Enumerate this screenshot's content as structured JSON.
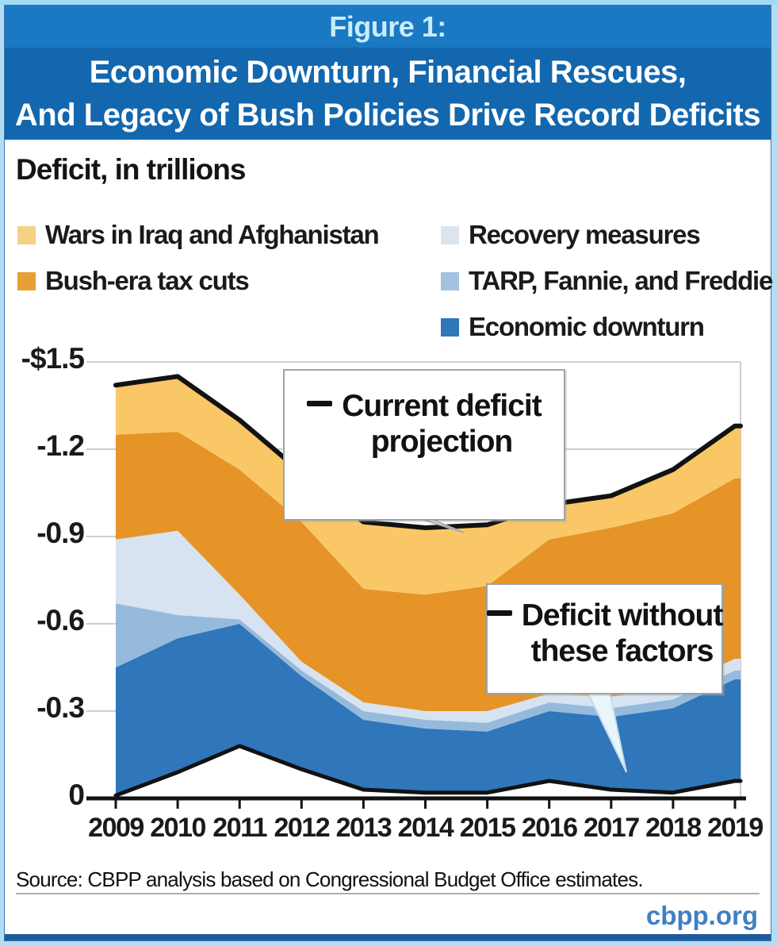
{
  "header": {
    "figure_label": "Figure 1:",
    "title_line1": "Economic Downturn, Financial Rescues,",
    "title_line2": "And Legacy of Bush Policies Drive Record Deficits"
  },
  "chart_heading": "Deficit, in trillions",
  "legend": {
    "left": [
      {
        "label": "Wars in Iraq and Afghanistan",
        "color": "#f4d183"
      },
      {
        "label": "Bush-era tax cuts",
        "color": "#e89f33"
      }
    ],
    "right": [
      {
        "label": "Recovery measures",
        "color": "#dce5ef"
      },
      {
        "label": "TARP, Fannie, and Freddie",
        "color": "#a3c2df"
      },
      {
        "label": "Economic downturn",
        "color": "#2f76bb"
      }
    ]
  },
  "callouts": {
    "current": {
      "line1": "Current deficit",
      "line2": "projection"
    },
    "without": {
      "line1": "Deficit without",
      "line2": "these factors"
    }
  },
  "footer": {
    "source": "Source: CBPP analysis based on Congressional Budget Office estimates.",
    "site": "cbpp.org"
  },
  "colors": {
    "header_band1": "#1b79c3",
    "header_band2": "#1367ae",
    "figure_label_text": "#c9ecfa",
    "frame": "#b5ddf1",
    "navy_bar": "#1e5b9b",
    "gridline": "#c8ced4",
    "axis_line": "#121212",
    "deficit_lines": "#121212",
    "area_wars": "#f9c766",
    "area_tax_cuts": "#e69327",
    "area_recovery": "#d7e3f0",
    "area_tarp": "#96badc",
    "area_downturn": "#2f76bb",
    "site_link": "#3f80c1"
  },
  "chart_data": {
    "type": "area",
    "stacked": true,
    "title": "Deficit, in trillions",
    "unit": "trillions of dollars (deficits plotted as negative values)",
    "x": [
      2009,
      2010,
      2011,
      2012,
      2013,
      2014,
      2015,
      2016,
      2017,
      2018,
      2019
    ],
    "x_tick_labels": [
      "2009",
      "2010",
      "2011",
      "2012",
      "2013",
      "2014",
      "2015",
      "2016",
      "2017",
      "2018",
      "2019"
    ],
    "y_tick_labels": [
      "-$1.5",
      "-1.2",
      "-0.9",
      "-0.6",
      "-0.3",
      "0"
    ],
    "y_tick_values": [
      1.5,
      1.2,
      0.9,
      0.6,
      0.3,
      0
    ],
    "ylim": [
      0,
      1.5
    ],
    "grid": true,
    "legend_position": "top",
    "baseline_series": {
      "name": "Deficit without these factors",
      "values": [
        0.01,
        0.09,
        0.18,
        0.1,
        0.03,
        0.02,
        0.02,
        0.06,
        0.03,
        0.02,
        0.06
      ]
    },
    "bands": [
      {
        "name": "Economic downturn",
        "color": "#2f76bb",
        "values": [
          0.44,
          0.46,
          0.42,
          0.32,
          0.24,
          0.22,
          0.21,
          0.24,
          0.25,
          0.29,
          0.35
        ]
      },
      {
        "name": "TARP, Fannie, and Freddie",
        "color": "#96badc",
        "values": [
          0.22,
          0.08,
          0.015,
          0.02,
          0.03,
          0.03,
          0.03,
          0.03,
          0.03,
          0.03,
          0.03
        ]
      },
      {
        "name": "Recovery measures",
        "color": "#d7e3f0",
        "values": [
          0.22,
          0.29,
          0.085,
          0.03,
          0.03,
          0.03,
          0.04,
          0.03,
          0.04,
          0.04,
          0.04
        ]
      },
      {
        "name": "Bush-era tax cuts",
        "color": "#e69327",
        "values": [
          0.36,
          0.34,
          0.43,
          0.48,
          0.39,
          0.4,
          0.43,
          0.53,
          0.58,
          0.6,
          0.62
        ]
      },
      {
        "name": "Wars in Iraq and Afghanistan",
        "color": "#f9c766",
        "values": [
          0.17,
          0.19,
          0.17,
          0.17,
          0.23,
          0.23,
          0.21,
          0.12,
          0.11,
          0.15,
          0.18
        ]
      }
    ],
    "top_line": {
      "name": "Current deficit projection",
      "values": [
        1.42,
        1.45,
        1.3,
        1.12,
        0.95,
        0.93,
        0.94,
        1.01,
        1.04,
        1.13,
        1.28
      ]
    }
  }
}
